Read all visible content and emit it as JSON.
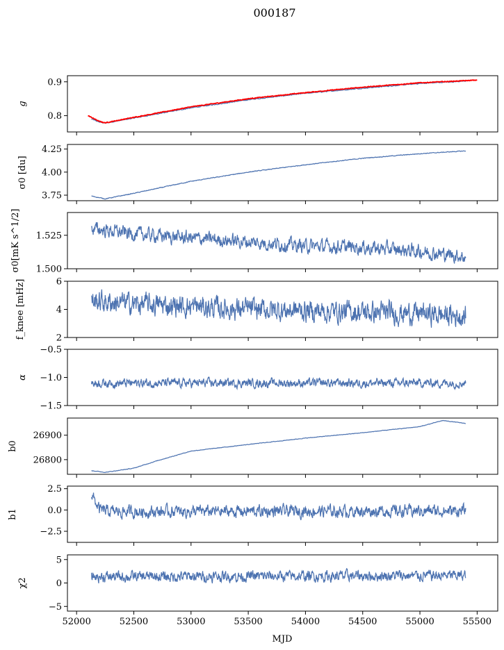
{
  "chart_data": {
    "type": "line",
    "title": "000187",
    "xlabel": "MJD",
    "xlim": [
      51920,
      55680
    ],
    "x_ticks": [
      52000,
      52500,
      53000,
      53500,
      54000,
      54500,
      55000,
      55500
    ],
    "x_tick_labels": [
      "52000",
      "52500",
      "53000",
      "53500",
      "54000",
      "54500",
      "55000",
      "55500"
    ],
    "series_color": "#4c72b0",
    "overlay_color": "#ff0000",
    "x_start": 52130,
    "x_end": 55400,
    "panels": [
      {
        "ylabel": "g",
        "ylim": [
          0.752,
          0.918
        ],
        "yticks": [
          0.8,
          0.9
        ],
        "ytick_labels": [
          "0.8",
          "0.9"
        ],
        "series": [
          {
            "color": "#4c72b0",
            "x": [
              52130,
              52200,
              52250,
              52500,
              53000,
              53500,
              54000,
              54500,
              55000,
              55400
            ],
            "y": [
              0.79,
              0.781,
              0.778,
              0.793,
              0.823,
              0.847,
              0.866,
              0.881,
              0.895,
              0.902
            ],
            "noise": 0.001
          },
          {
            "color": "#ff0000",
            "x": [
              52100,
              52200,
              52250,
              52500,
              53000,
              53500,
              54000,
              54500,
              55000,
              55500
            ],
            "y": [
              0.8,
              0.783,
              0.779,
              0.795,
              0.826,
              0.85,
              0.868,
              0.884,
              0.897,
              0.905
            ],
            "noise": 0.0008
          }
        ]
      },
      {
        "ylabel": "σ0 [du]",
        "ylim": [
          3.69,
          4.3
        ],
        "yticks": [
          3.75,
          4.0,
          4.25
        ],
        "ytick_labels": [
          "3.75",
          "4.00",
          "4.25"
        ],
        "series": [
          {
            "color": "#4c72b0",
            "x": [
              52130,
              52250,
              52500,
              53000,
              53500,
              54000,
              54500,
              55000,
              55400
            ],
            "y": [
              3.74,
              3.71,
              3.77,
              3.9,
              4.0,
              4.08,
              4.15,
              4.2,
              4.23
            ],
            "noise": 0.003
          }
        ]
      },
      {
        "ylabel": "σ0[mK s^1/2]",
        "ylim": [
          1.5,
          1.542
        ],
        "yticks": [
          1.5,
          1.525
        ],
        "ytick_labels": [
          "1.500",
          "1.525"
        ],
        "series": [
          {
            "color": "#4c72b0",
            "x": [
              52130,
              52500,
              53000,
              53500,
              54000,
              54500,
              55000,
              55400
            ],
            "y": [
              1.53,
              1.526,
              1.523,
              1.52,
              1.517,
              1.516,
              1.513,
              1.509
            ],
            "noise": 0.004
          }
        ]
      },
      {
        "ylabel": "f_knee [mHz]",
        "ylim": [
          2,
          6
        ],
        "yticks": [
          2,
          4,
          6
        ],
        "ytick_labels": [
          "2",
          "4",
          "6"
        ],
        "series": [
          {
            "color": "#4c72b0",
            "x": [
              52130,
              52500,
              53000,
              53500,
              54000,
              54500,
              55000,
              55400
            ],
            "y": [
              4.6,
              4.4,
              4.2,
              4.0,
              3.9,
              3.8,
              3.7,
              3.5
            ],
            "noise": 0.6
          }
        ]
      },
      {
        "ylabel": "α",
        "ylim": [
          -1.5,
          -0.5
        ],
        "yticks": [
          -1.5,
          -1.0,
          -0.5
        ],
        "ytick_labels": [
          "−1.5",
          "−1.0",
          "−0.5"
        ],
        "series": [
          {
            "color": "#4c72b0",
            "x": [
              52130,
              55400
            ],
            "y": [
              -1.1,
              -1.1
            ],
            "noise": 0.06
          }
        ]
      },
      {
        "ylabel": "b0",
        "ylim": [
          26740,
          26970
        ],
        "yticks": [
          26800,
          26900
        ],
        "ytick_labels": [
          "26800",
          "26900"
        ],
        "series": [
          {
            "color": "#4c72b0",
            "x": [
              52130,
              52250,
              52500,
              52700,
              53000,
              53500,
              54000,
              54500,
              55000,
              55200,
              55400
            ],
            "y": [
              26755,
              26748,
              26765,
              26795,
              26835,
              26862,
              26888,
              26910,
              26935,
              26960,
              26948
            ],
            "noise": 0.8
          }
        ]
      },
      {
        "ylabel": "b1",
        "ylim": [
          -3.8,
          2.8
        ],
        "yticks": [
          -2.5,
          0.0,
          2.5
        ],
        "ytick_labels": [
          "−2.5",
          "0.0",
          "2.5"
        ],
        "series": [
          {
            "color": "#4c72b0",
            "x": [
              52130,
              52200,
              52300,
              55400
            ],
            "y": [
              1.8,
              0.0,
              -0.2,
              -0.1
            ],
            "noise": 0.55
          }
        ]
      },
      {
        "ylabel": "χ2",
        "ylim": [
          -6,
          6
        ],
        "yticks": [
          -5,
          0,
          5
        ],
        "ytick_labels": [
          "−5",
          "0",
          "5"
        ],
        "series": [
          {
            "color": "#4c72b0",
            "x": [
              52130,
              55400
            ],
            "y": [
              1.3,
              1.6
            ],
            "noise": 0.9
          }
        ]
      }
    ]
  }
}
